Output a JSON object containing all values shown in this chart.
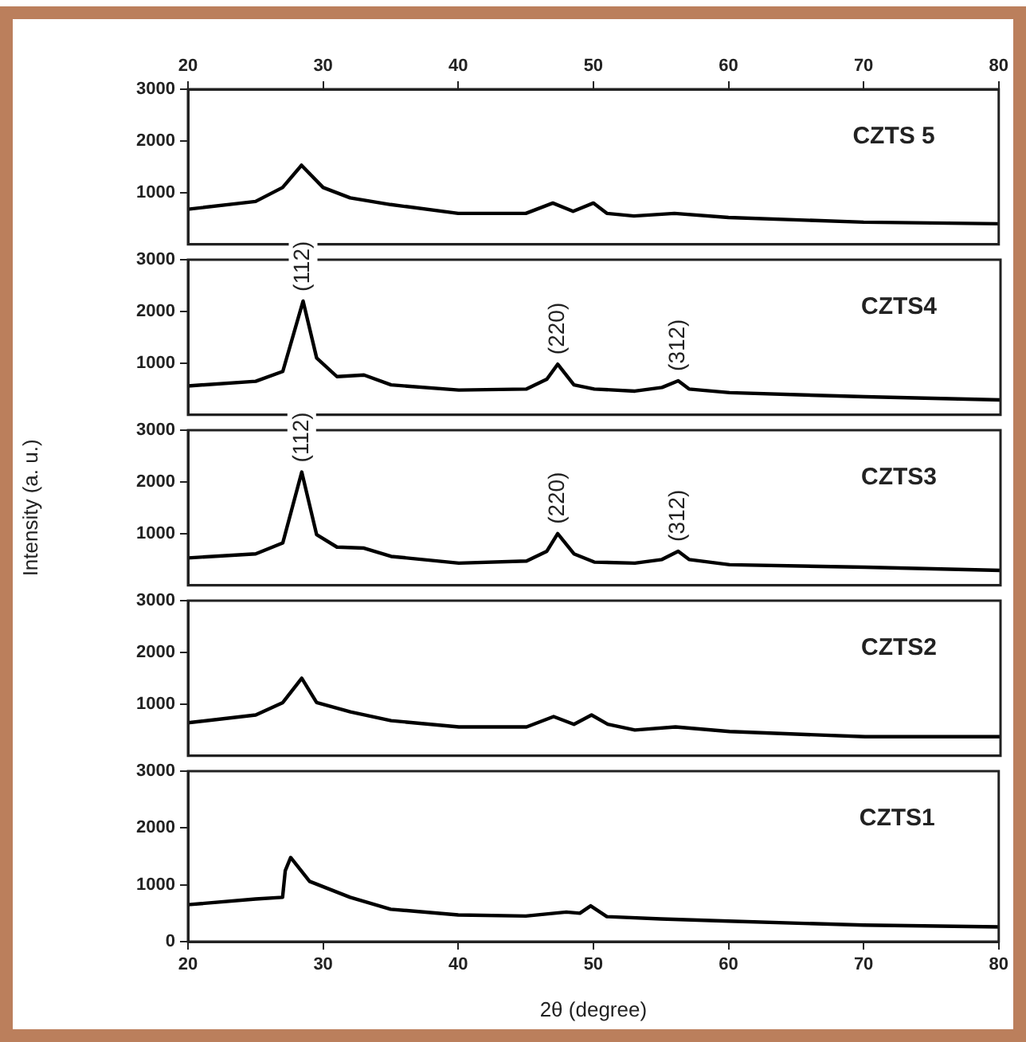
{
  "chart_data": [
    {
      "type": "line",
      "x": [
        20,
        25,
        27,
        28.4,
        30,
        32,
        35,
        40,
        45,
        47,
        48.5,
        50,
        51,
        53,
        56,
        60,
        70,
        80
      ],
      "values": [
        680,
        830,
        1100,
        1530,
        1100,
        900,
        770,
        600,
        600,
        800,
        640,
        800,
        600,
        550,
        600,
        520,
        430,
        400
      ],
      "color": "#000000",
      "xlim": [
        20,
        80
      ],
      "xticks": [
        20,
        30,
        40,
        50,
        60,
        70,
        80
      ],
      "x2lim": [
        20,
        80
      ],
      "x2ticks": [
        20,
        30,
        40,
        50,
        60,
        70,
        80
      ],
      "ylim": [
        0,
        3000
      ],
      "yticks": [
        1000,
        2000,
        3000
      ],
      "tick_labels": "y",
      "annotations": [
        "CZTS 5"
      ]
    },
    {
      "type": "line",
      "x": [
        20,
        25,
        27,
        28.5,
        29.5,
        31,
        33,
        35,
        40,
        45,
        46.5,
        47.3,
        48.5,
        50,
        53,
        55,
        56.2,
        57,
        60,
        70,
        80
      ],
      "values": [
        560,
        650,
        840,
        2200,
        1100,
        740,
        770,
        580,
        480,
        500,
        690,
        980,
        580,
        500,
        460,
        530,
        660,
        500,
        430,
        350,
        290
      ],
      "color": "#000000",
      "xlim": [
        20,
        80
      ],
      "xticks": [
        20,
        30,
        40,
        50,
        60,
        70,
        80
      ],
      "ylim": [
        0,
        3000
      ],
      "yticks": [
        1000,
        2000,
        3000
      ],
      "tick_labels": "y",
      "annotations": [
        "CZTS4",
        {
          "text": "(112)",
          "x": 28.5,
          "y": 2200
        },
        {
          "text": "(220)",
          "x": 47.3,
          "y": 980
        },
        {
          "text": "(312)",
          "x": 56.2,
          "y": 660
        }
      ]
    },
    {
      "type": "line",
      "x": [
        20,
        25,
        27,
        28.4,
        29.5,
        31,
        33,
        35,
        40,
        45,
        46.5,
        47.3,
        48.5,
        50,
        53,
        55,
        56.2,
        57,
        60,
        70,
        80
      ],
      "values": [
        530,
        610,
        820,
        2190,
        980,
        740,
        720,
        560,
        430,
        470,
        660,
        1000,
        610,
        450,
        430,
        500,
        660,
        500,
        400,
        350,
        290
      ],
      "color": "#000000",
      "xlim": [
        20,
        80
      ],
      "xticks": [
        20,
        30,
        40,
        50,
        60,
        70,
        80
      ],
      "ylim": [
        0,
        3000
      ],
      "yticks": [
        1000,
        2000,
        3000
      ],
      "tick_labels": "y",
      "ylabel": "Intensity (a. u.)",
      "annotations": [
        "CZTS3",
        {
          "text": "(112)",
          "x": 28.4,
          "y": 2190
        },
        {
          "text": "(220)",
          "x": 47.3,
          "y": 1000
        },
        {
          "text": "(312)",
          "x": 56.2,
          "y": 660
        }
      ]
    },
    {
      "type": "line",
      "x": [
        20,
        25,
        27,
        28.4,
        29.5,
        32,
        35,
        40,
        45,
        47,
        48.5,
        49.8,
        51,
        53,
        56,
        60,
        70,
        80
      ],
      "values": [
        640,
        790,
        1030,
        1500,
        1030,
        850,
        680,
        560,
        560,
        760,
        610,
        790,
        610,
        500,
        560,
        470,
        370,
        370
      ],
      "color": "#000000",
      "xlim": [
        20,
        80
      ],
      "xticks": [
        20,
        30,
        40,
        50,
        60,
        70,
        80
      ],
      "ylim": [
        0,
        3000
      ],
      "yticks": [
        1000,
        2000,
        3000
      ],
      "tick_labels": "y",
      "annotations": [
        "CZTS2"
      ]
    },
    {
      "type": "line",
      "x": [
        20,
        25,
        27,
        27.2,
        27.6,
        29,
        32,
        35,
        40,
        45,
        48,
        49,
        49.8,
        51,
        55,
        60,
        70,
        80
      ],
      "values": [
        650,
        750,
        780,
        1250,
        1480,
        1060,
        780,
        570,
        470,
        450,
        520,
        500,
        630,
        440,
        400,
        360,
        290,
        260
      ],
      "color": "#000000",
      "xlim": [
        20,
        80
      ],
      "xticks": [
        20,
        30,
        40,
        50,
        60,
        70,
        80
      ],
      "ylim": [
        0,
        3000
      ],
      "yticks": [
        0,
        1000,
        2000,
        3000
      ],
      "xlabel": "2θ (degree)",
      "annotations": [
        "CZTS1"
      ]
    }
  ]
}
